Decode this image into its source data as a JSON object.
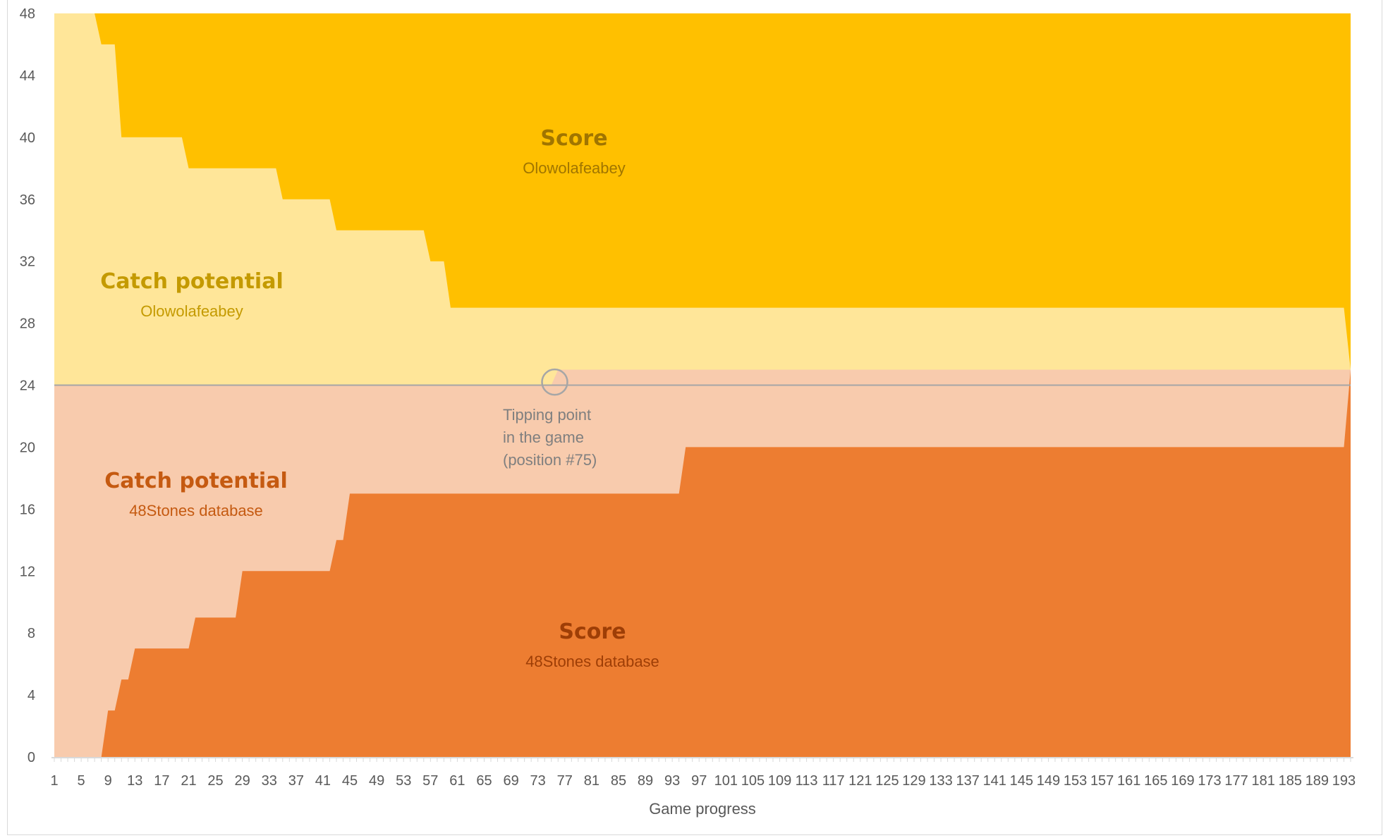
{
  "chart_data": {
    "type": "area",
    "xlabel": "Game progress",
    "ylabel": "",
    "xlim": [
      1,
      194
    ],
    "ylim": [
      0,
      48
    ],
    "y_ticks": [
      0,
      4,
      8,
      12,
      16,
      20,
      24,
      28,
      32,
      36,
      40,
      44,
      48
    ],
    "x_tick_labels": [
      "1",
      "5",
      "9",
      "13",
      "17",
      "21",
      "25",
      "29",
      "33",
      "37",
      "41",
      "45",
      "49",
      "53",
      "57",
      "61",
      "65",
      "69",
      "73",
      "77",
      "81",
      "85",
      "89",
      "93",
      "97",
      "101",
      "105",
      "109",
      "113",
      "117",
      "121",
      "125",
      "129",
      "133",
      "137",
      "141",
      "145",
      "149",
      "153",
      "157",
      "161",
      "165",
      "169",
      "173",
      "177",
      "181",
      "185",
      "189",
      "193"
    ],
    "grid": false,
    "reference_line": 24,
    "series": [
      {
        "name": "Score 48Stones database",
        "color": "#ED7D31",
        "points": [
          [
            1,
            0
          ],
          [
            8,
            0
          ],
          [
            9,
            3
          ],
          [
            10,
            3
          ],
          [
            11,
            5
          ],
          [
            12,
            5
          ],
          [
            13,
            7
          ],
          [
            21,
            7
          ],
          [
            22,
            9
          ],
          [
            28,
            9
          ],
          [
            29,
            12
          ],
          [
            42,
            12
          ],
          [
            43,
            14
          ],
          [
            44,
            14
          ],
          [
            45,
            17
          ],
          [
            94,
            17
          ],
          [
            95,
            20
          ],
          [
            193,
            20
          ],
          [
            194,
            25
          ]
        ]
      },
      {
        "name": "Catch potential 48Stones database",
        "color": "#F8CBAD",
        "points": [
          [
            1,
            24
          ],
          [
            75,
            24
          ],
          [
            76,
            25
          ],
          [
            193,
            25
          ],
          [
            194,
            25
          ]
        ]
      },
      {
        "name": "Catch potential Olowolafeabey",
        "color": "#FFE699",
        "points": [
          [
            1,
            48
          ],
          [
            7,
            48
          ],
          [
            8,
            46
          ],
          [
            10,
            46
          ],
          [
            11,
            40
          ],
          [
            20,
            40
          ],
          [
            21,
            38
          ],
          [
            34,
            38
          ],
          [
            35,
            36
          ],
          [
            42,
            36
          ],
          [
            43,
            34
          ],
          [
            56,
            34
          ],
          [
            57,
            32
          ],
          [
            59,
            32
          ],
          [
            60,
            29
          ],
          [
            193,
            29
          ],
          [
            194,
            25
          ]
        ]
      },
      {
        "name": "Score Olowolafeabey",
        "color": "#FFC000",
        "points": [
          [
            1,
            48
          ],
          [
            194,
            48
          ]
        ]
      }
    ],
    "annotations": {
      "score_top": {
        "title": "Score",
        "subtitle": "Olowolafeabey",
        "color": "#A07500"
      },
      "catch_top": {
        "title": "Catch potential",
        "subtitle": "Olowolafeabey",
        "color": "#C49A00"
      },
      "catch_bottom": {
        "title": "Catch potential",
        "subtitle": "48Stones database",
        "color": "#C55A11"
      },
      "score_bottom": {
        "title": "Score",
        "subtitle": "48Stones database",
        "color": "#9E3E06"
      },
      "tipping": {
        "lines": [
          "Tipping point",
          "in the game",
          "(position #75)"
        ],
        "position": 75
      }
    }
  }
}
